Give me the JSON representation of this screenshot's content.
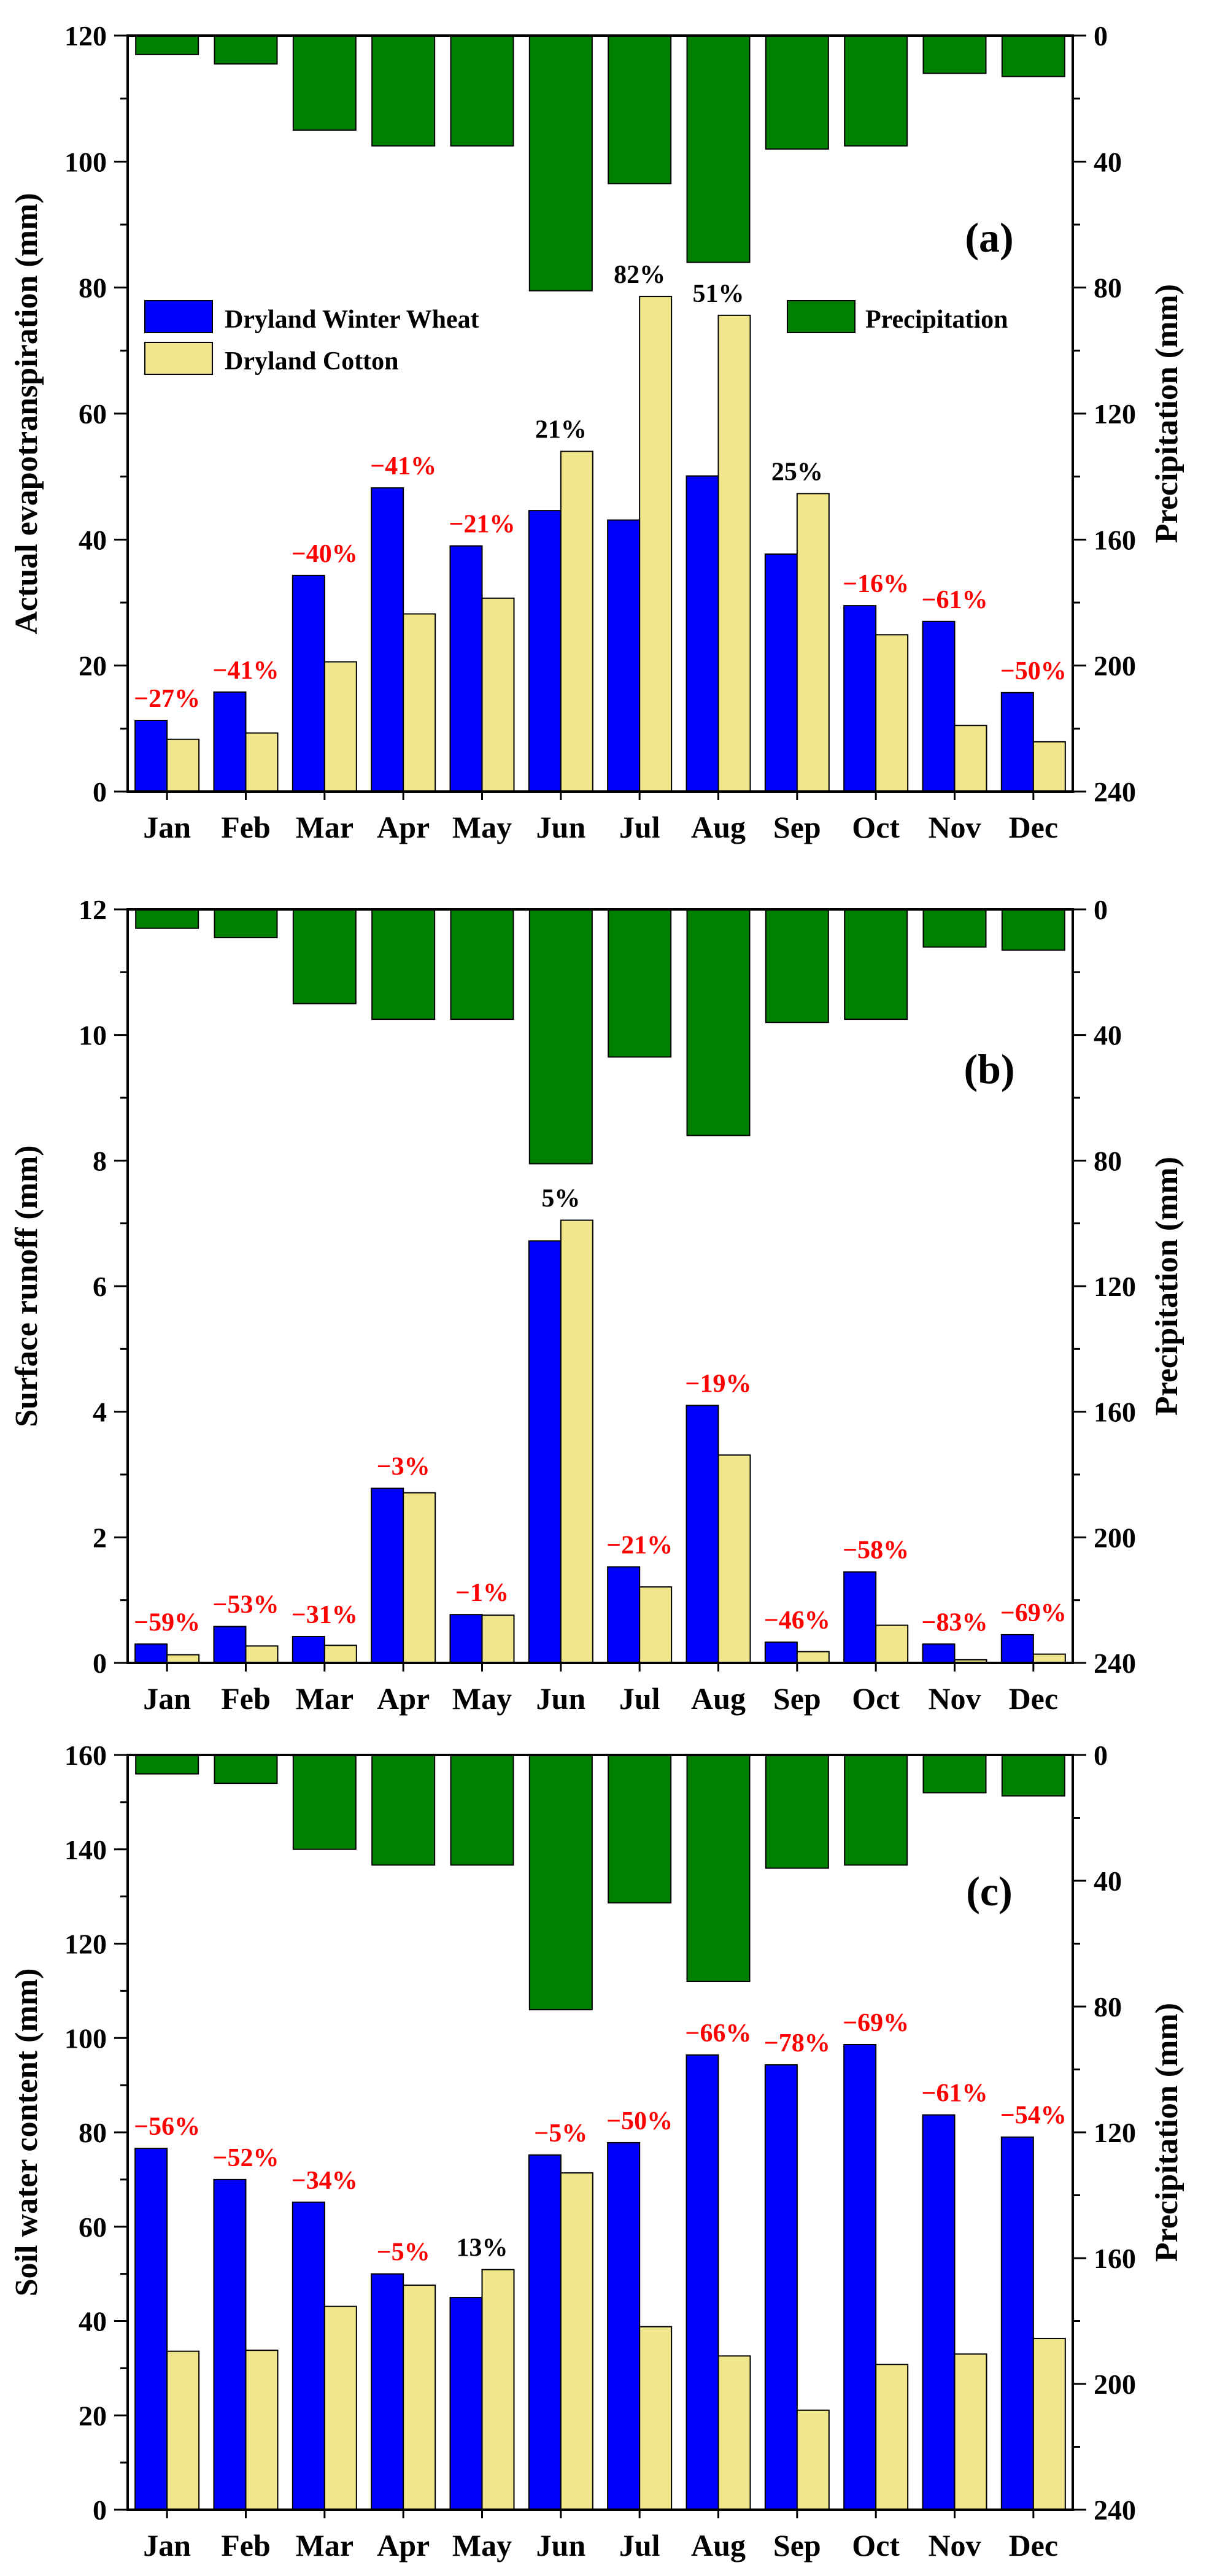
{
  "chart_data": [
    {
      "type": "bar",
      "panel_label": "(a)",
      "ylabel": "Actual evapotranspiration (mm)",
      "y2label": "Precipitation (mm)",
      "categories": [
        "Jan",
        "Feb",
        "Mar",
        "Apr",
        "May",
        "Jun",
        "Jul",
        "Aug",
        "Sep",
        "Oct",
        "Nov",
        "Dec"
      ],
      "ylim": [
        0,
        120
      ],
      "yticks": [
        0,
        20,
        40,
        60,
        80,
        100,
        120
      ],
      "y2lim": [
        0,
        240
      ],
      "y2ticks": [
        0,
        40,
        80,
        120,
        160,
        200,
        240
      ],
      "series": [
        {
          "name": "Dryland Winter Wheat",
          "color": "#0000ff",
          "values": [
            11.3,
            15.8,
            34.3,
            48.2,
            39,
            44.6,
            43.1,
            50.1,
            37.7,
            29.5,
            27,
            15.7
          ]
        },
        {
          "name": "Dryland Cotton",
          "color": "#f0e68c",
          "values": [
            8.3,
            9.3,
            20.6,
            28.2,
            30.7,
            54,
            78.6,
            75.6,
            47.3,
            24.9,
            10.5,
            7.9
          ]
        }
      ],
      "precipitation": {
        "name": "Precipitation",
        "color": "#008000",
        "values": [
          6,
          9,
          30,
          35,
          35,
          81,
          47,
          72,
          36,
          35,
          12,
          13
        ]
      },
      "annotations": [
        "−27%",
        "−41%",
        "−40%",
        "−41%",
        "−21%",
        "21%",
        "82%",
        "51%",
        "25%",
        "−16%",
        "−61%",
        "−50%"
      ],
      "legend": [
        "Dryland Winter Wheat",
        "Dryland Cotton",
        "Precipitation"
      ]
    },
    {
      "type": "bar",
      "panel_label": "(b)",
      "ylabel": "Surface runoff (mm)",
      "y2label": "Precipitation (mm)",
      "categories": [
        "Jan",
        "Feb",
        "Mar",
        "Apr",
        "May",
        "Jun",
        "Jul",
        "Aug",
        "Sep",
        "Oct",
        "Nov",
        "Dec"
      ],
      "ylim": [
        0,
        12
      ],
      "yticks": [
        0,
        2,
        4,
        6,
        8,
        10,
        12
      ],
      "y2lim": [
        0,
        240
      ],
      "y2ticks": [
        0,
        40,
        80,
        120,
        160,
        200,
        240
      ],
      "series": [
        {
          "name": "Dryland Winter Wheat",
          "color": "#0000ff",
          "values": [
            0.3,
            0.58,
            0.42,
            2.78,
            0.77,
            6.72,
            1.53,
            4.1,
            0.33,
            1.45,
            0.3,
            0.45
          ]
        },
        {
          "name": "Dryland Cotton",
          "color": "#f0e68c",
          "values": [
            0.13,
            0.27,
            0.28,
            2.71,
            0.76,
            7.05,
            1.21,
            3.31,
            0.18,
            0.6,
            0.05,
            0.14
          ]
        }
      ],
      "precipitation": {
        "name": "Precipitation",
        "color": "#008000",
        "values": [
          6,
          9,
          30,
          35,
          35,
          81,
          47,
          72,
          36,
          35,
          12,
          13
        ]
      },
      "annotations": [
        "−59%",
        "−53%",
        "−31%",
        "−3%",
        "−1%",
        "5%",
        "−21%",
        "−19%",
        "−46%",
        "−58%",
        "−83%",
        "−69%"
      ]
    },
    {
      "type": "bar",
      "panel_label": "(c)",
      "ylabel": "Soil water content (mm)",
      "y2label": "Precipitation (mm)",
      "categories": [
        "Jan",
        "Feb",
        "Mar",
        "Apr",
        "May",
        "Jun",
        "Jul",
        "Aug",
        "Sep",
        "Oct",
        "Nov",
        "Dec"
      ],
      "ylim": [
        0,
        160
      ],
      "yticks": [
        0,
        20,
        40,
        60,
        80,
        100,
        120,
        140,
        160
      ],
      "y2lim": [
        0,
        240
      ],
      "y2ticks": [
        0,
        40,
        80,
        120,
        160,
        200,
        240
      ],
      "series": [
        {
          "name": "Dryland Winter Wheat",
          "color": "#0000ff",
          "values": [
            76.6,
            70,
            65.2,
            50,
            45,
            75.2,
            77.8,
            96.4,
            94.3,
            98.6,
            83.7,
            79
          ]
        },
        {
          "name": "Dryland Cotton",
          "color": "#f0e68c",
          "values": [
            33.6,
            33.8,
            43.1,
            47.6,
            50.9,
            71.4,
            38.8,
            32.6,
            21.1,
            30.8,
            33,
            36.3
          ]
        }
      ],
      "precipitation": {
        "name": "Precipitation",
        "color": "#008000",
        "values": [
          6,
          9,
          30,
          35,
          35,
          81,
          47,
          72,
          36,
          35,
          12,
          13
        ]
      },
      "annotations": [
        "−56%",
        "−52%",
        "−34%",
        "−5%",
        "13%",
        "−5%",
        "−50%",
        "−66%",
        "−78%",
        "−69%",
        "−61%",
        "−54%"
      ]
    }
  ]
}
